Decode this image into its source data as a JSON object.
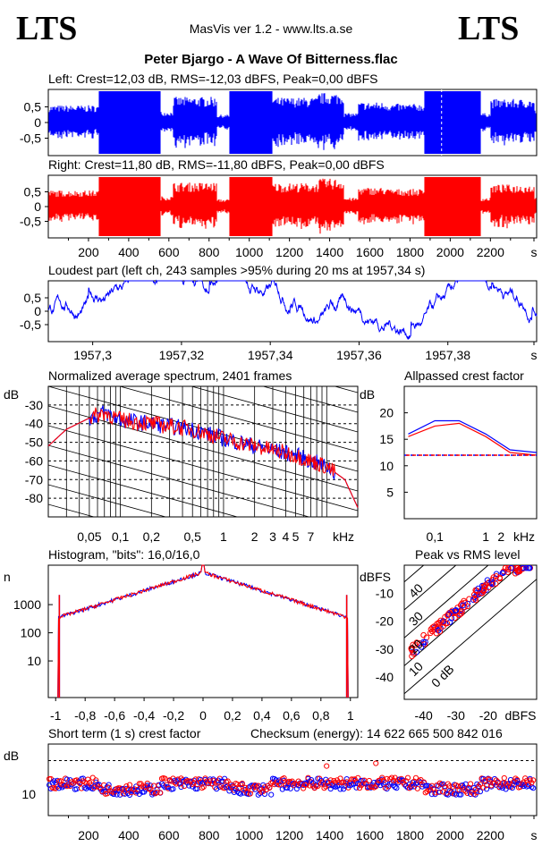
{
  "header": {
    "logo_left": "LTS",
    "logo_right": "LTS",
    "app_title": "MasVis ver 1.2 - www.lts.a.se",
    "file_title": "Peter Bjargo - A Wave Of Bitterness.flac",
    "checksum": "Checksum (energy):  14 622 665 500 842 016"
  },
  "colors": {
    "left": "#0000ff",
    "right": "#ff0000"
  },
  "chart_data": [
    {
      "id": "left_waveform",
      "type": "area",
      "title": "Left: Crest=12,03 dB, RMS=-12,03 dBFS, Peak=0,00 dBFS",
      "ylim": [
        -1,
        1
      ],
      "yticks": [
        "0,5",
        "0",
        "-0,5"
      ],
      "xlim": [
        0,
        2430
      ],
      "x_unit": "s",
      "segments": [
        {
          "x0": 0,
          "x1": 250,
          "amp": 0.55
        },
        {
          "x0": 250,
          "x1": 560,
          "amp": 1.0
        },
        {
          "x0": 560,
          "x1": 620,
          "amp": 0.35
        },
        {
          "x0": 620,
          "x1": 840,
          "amp": 0.82
        },
        {
          "x0": 840,
          "x1": 900,
          "amp": 0.25
        },
        {
          "x0": 900,
          "x1": 1115,
          "amp": 1.0
        },
        {
          "x0": 1115,
          "x1": 1340,
          "amp": 0.8
        },
        {
          "x0": 1340,
          "x1": 1470,
          "amp": 0.95
        },
        {
          "x0": 1470,
          "x1": 1540,
          "amp": 0.3
        },
        {
          "x0": 1540,
          "x1": 1690,
          "amp": 0.65
        },
        {
          "x0": 1690,
          "x1": 1870,
          "amp": 0.6
        },
        {
          "x0": 1870,
          "x1": 2150,
          "amp": 1.0
        },
        {
          "x0": 2150,
          "x1": 2200,
          "amp": 0.3
        },
        {
          "x0": 2200,
          "x1": 2420,
          "amp": 0.75
        }
      ]
    },
    {
      "id": "right_waveform",
      "type": "area",
      "title": "Right: Crest=11,80 dB, RMS=-11,80 dBFS, Peak=0,00 dBFS",
      "ylim": [
        -1,
        1
      ],
      "yticks": [
        "0,5",
        "0",
        "-0,5"
      ],
      "xlim": [
        0,
        2430
      ],
      "xticks": [
        "200",
        "400",
        "600",
        "800",
        "1000",
        "1200",
        "1400",
        "1600",
        "1800",
        "2000",
        "2200",
        "s"
      ],
      "x_unit": "s"
    },
    {
      "id": "loudest_part",
      "type": "line",
      "title": "Loudest part (left  ch, 243 samples >95% during 20 ms at 1957,34 s)",
      "xlim": [
        1957.29,
        1957.4
      ],
      "ylim": [
        -1,
        1
      ],
      "yticks": [
        "0,5",
        "0",
        "-0,5"
      ],
      "xticks": [
        "1957,3",
        "1957,32",
        "1957,34",
        "1957,36",
        "1957,38",
        "s"
      ]
    },
    {
      "id": "spectrum",
      "type": "line",
      "title": "Normalized average spectrum, 2401 frames",
      "ylabel": "dB",
      "xlabel": "kHz",
      "yticks": [
        "-30",
        "-40",
        "-50",
        "-60",
        "-70",
        "-80"
      ],
      "xticks": [
        "0,05",
        "0,1",
        "0,2",
        "0,5",
        "1",
        "2",
        "3",
        "4",
        "5",
        "7",
        "kHz"
      ],
      "ylim": [
        -90,
        -20
      ],
      "xlim_khz": [
        0.02,
        20
      ],
      "series_points_db": [
        [
          0.02,
          -52
        ],
        [
          0.03,
          -43
        ],
        [
          0.05,
          -37
        ],
        [
          0.07,
          -34
        ],
        [
          0.1,
          -38
        ],
        [
          0.2,
          -40
        ],
        [
          0.5,
          -43
        ],
        [
          1,
          -48
        ],
        [
          2,
          -52
        ],
        [
          5,
          -57
        ],
        [
          10,
          -63
        ],
        [
          15,
          -70
        ],
        [
          20,
          -85
        ]
      ]
    },
    {
      "id": "allpassed_crest",
      "type": "line",
      "title": "Allpassed crest factor",
      "ylabel": "dB",
      "xlabel": "kHz",
      "yticks": [
        "20",
        "15",
        "10",
        "5"
      ],
      "xticks": [
        "0,1",
        "1",
        "2",
        "kHz"
      ],
      "ylim": [
        0,
        25
      ],
      "reference_db": 12,
      "series": [
        {
          "name": "left",
          "points": [
            [
              0.03,
              16
            ],
            [
              0.1,
              18.5
            ],
            [
              0.3,
              18.5
            ],
            [
              1,
              16
            ],
            [
              3,
              13
            ],
            [
              10,
              12.5
            ]
          ]
        },
        {
          "name": "right",
          "points": [
            [
              0.03,
              15.5
            ],
            [
              0.1,
              17.5
            ],
            [
              0.3,
              18
            ],
            [
              1,
              15.5
            ],
            [
              3,
              12.5
            ],
            [
              10,
              12
            ]
          ]
        }
      ]
    },
    {
      "id": "histogram",
      "type": "line",
      "title": "Histogram, \"bits\": 16,0/16,0",
      "ylabel": "n",
      "yticks": [
        "1000",
        "100",
        "10"
      ],
      "xticks": [
        "-1",
        "-0,8",
        "-0,6",
        "-0,4",
        "-0,2",
        "0",
        "0,2",
        "0,4",
        "0,6",
        "0,8",
        "1"
      ],
      "xlim": [
        -1.05,
        1.05
      ]
    },
    {
      "id": "peak_vs_rms",
      "type": "scatter",
      "title": "Peak vs RMS level",
      "ylabel": "dBFS",
      "xlabel": "dBFS",
      "yticks": [
        "-10",
        "-20",
        "-30",
        "-40"
      ],
      "xticks": [
        "-40",
        "-30",
        "-20",
        "dBFS"
      ],
      "diag_labels": [
        "40",
        "30",
        "20",
        "10",
        "0 dB"
      ]
    },
    {
      "id": "short_term_crest",
      "type": "scatter",
      "title": "Short term (1 s) crest factor",
      "ylabel": "dB",
      "yticks": [
        "10"
      ],
      "xticks": [
        "200",
        "400",
        "600",
        "800",
        "1000",
        "1200",
        "1400",
        "1600",
        "1800",
        "2000",
        "2200",
        "s"
      ],
      "xlim": [
        0,
        2430
      ],
      "reference_db": 20
    }
  ]
}
